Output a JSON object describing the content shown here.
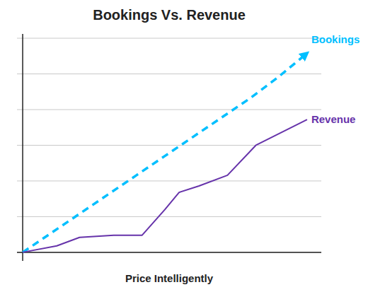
{
  "chart_data": {
    "type": "line",
    "title": "Bookings Vs. Revenue",
    "xlabel": "Price Intelligently",
    "series": [
      {
        "name": "Bookings",
        "color": "#00BFFF",
        "line_style": "dashed",
        "x": [
          0.0,
          0.1,
          0.2,
          0.3,
          0.4,
          0.5,
          0.6,
          0.7,
          0.8,
          0.9,
          1.0
        ],
        "values": [
          0.0,
          0.09,
          0.18,
          0.27,
          0.36,
          0.45,
          0.54,
          0.63,
          0.72,
          0.82,
          0.93
        ]
      },
      {
        "name": "Revenue",
        "color": "#6633AA",
        "line_style": "solid",
        "x": [
          0.0,
          0.12,
          0.2,
          0.32,
          0.42,
          0.5,
          0.55,
          0.62,
          0.72,
          0.82,
          1.0
        ],
        "values": [
          0.0,
          0.03,
          0.07,
          0.08,
          0.08,
          0.2,
          0.28,
          0.31,
          0.36,
          0.5,
          0.62
        ]
      }
    ],
    "xlim": [
      -0.02,
      1.05
    ],
    "ylim": [
      -0.04,
      1.02
    ],
    "yticks": [
      0,
      0.16666666666666666,
      0.3333333333333333,
      0.5,
      0.6666666666666666,
      0.8333333333333333,
      1.0
    ],
    "grid": true,
    "tick_labels": false
  }
}
